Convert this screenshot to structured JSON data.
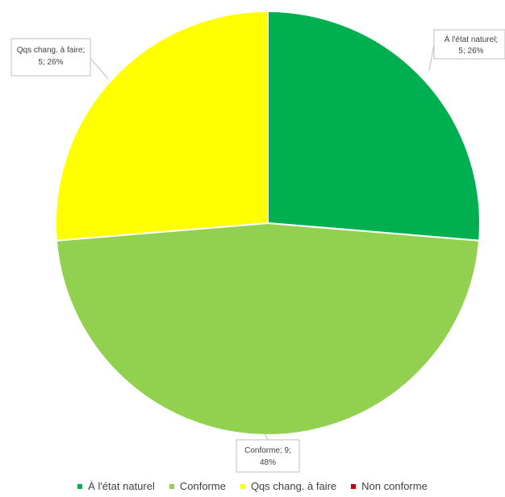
{
  "chart_data": {
    "type": "pie",
    "categories": [
      "À l'état naturel",
      "Conforme",
      "Qqs chang. à faire",
      "Non conforme"
    ],
    "values": [
      5,
      9,
      5,
      0
    ],
    "percents": [
      "26%",
      "48%",
      "26%",
      "0%"
    ],
    "colors": [
      "#00b050",
      "#92d050",
      "#ffff00",
      "#c00000"
    ],
    "data_labels": [
      [
        "À l'état naturel;",
        "5; 26%"
      ],
      [
        "Conforme; 9;",
        "48%"
      ],
      [
        "Qqs chang. à faire;",
        "5; 26%"
      ]
    ],
    "legend_position": "bottom"
  }
}
